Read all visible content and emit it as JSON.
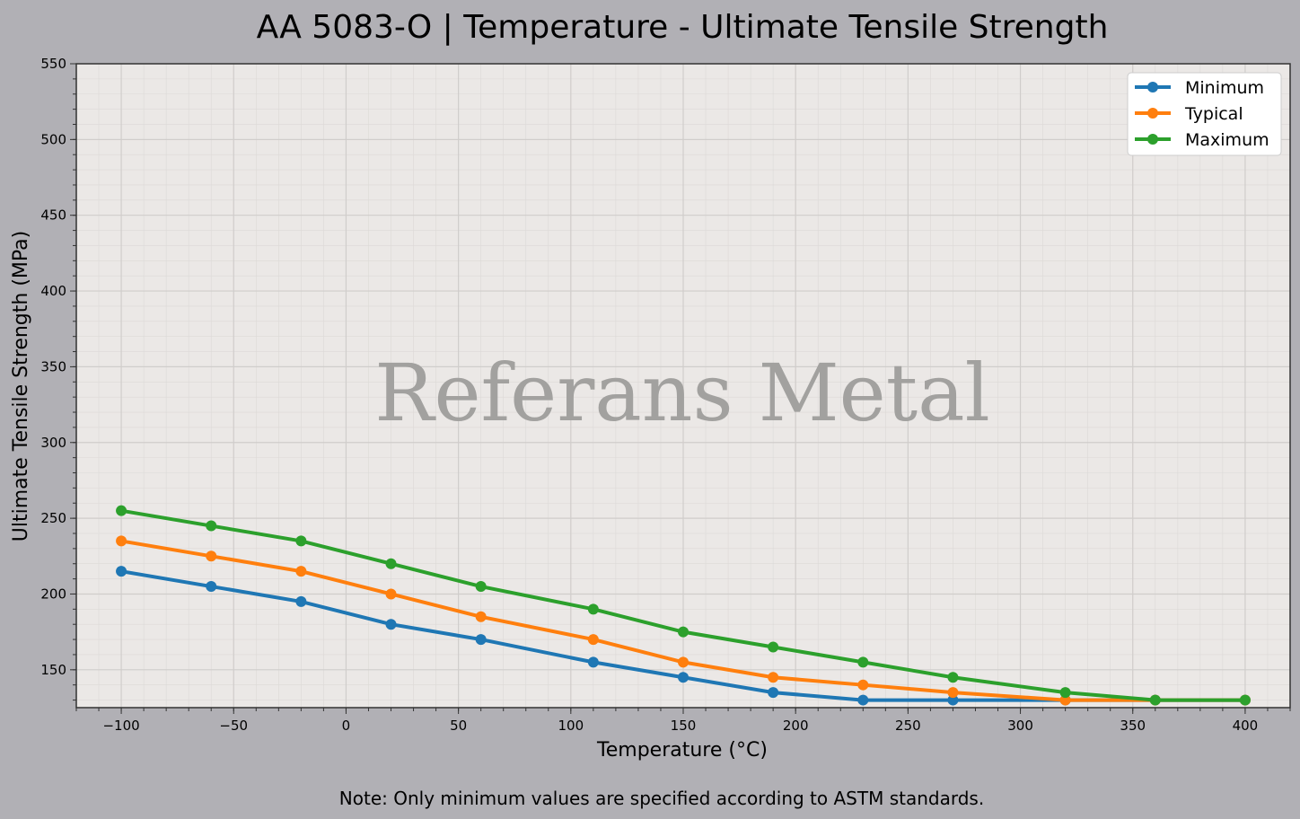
{
  "chart_data": {
    "type": "line",
    "title": "AA 5083-O | Temperature - Ultimate Tensile Strength",
    "xlabel": "Temperature (°C)",
    "ylabel": "Ultimate Tensile Strength (MPa)",
    "xlim": [
      -120,
      420
    ],
    "ylim": [
      125,
      550
    ],
    "xticks": [
      -100,
      -50,
      0,
      50,
      100,
      150,
      200,
      250,
      300,
      350,
      400
    ],
    "xtick_labels": [
      "−100",
      "−50",
      "0",
      "50",
      "100",
      "150",
      "200",
      "250",
      "300",
      "350",
      "400"
    ],
    "yticks": [
      150,
      200,
      250,
      300,
      350,
      400,
      450,
      500,
      550
    ],
    "grid": true,
    "legend_position": "top-right",
    "x": [
      -100,
      -60,
      -20,
      20,
      60,
      110,
      150,
      190,
      230,
      270,
      320,
      360,
      400
    ],
    "series": [
      {
        "name": "Minimum",
        "color": "#1f77b4",
        "values": [
          215,
          205,
          195,
          180,
          170,
          155,
          145,
          135,
          130,
          130,
          130,
          130,
          130
        ]
      },
      {
        "name": "Typical",
        "color": "#ff7f0e",
        "values": [
          235,
          225,
          215,
          200,
          185,
          170,
          155,
          145,
          140,
          135,
          130,
          130,
          130
        ]
      },
      {
        "name": "Maximum",
        "color": "#2ca02c",
        "values": [
          255,
          245,
          235,
          220,
          205,
          190,
          175,
          165,
          155,
          145,
          135,
          130,
          130
        ]
      }
    ],
    "watermark": "Referans Metal",
    "note": "Note: Only minimum values are specified according to ASTM standards."
  }
}
